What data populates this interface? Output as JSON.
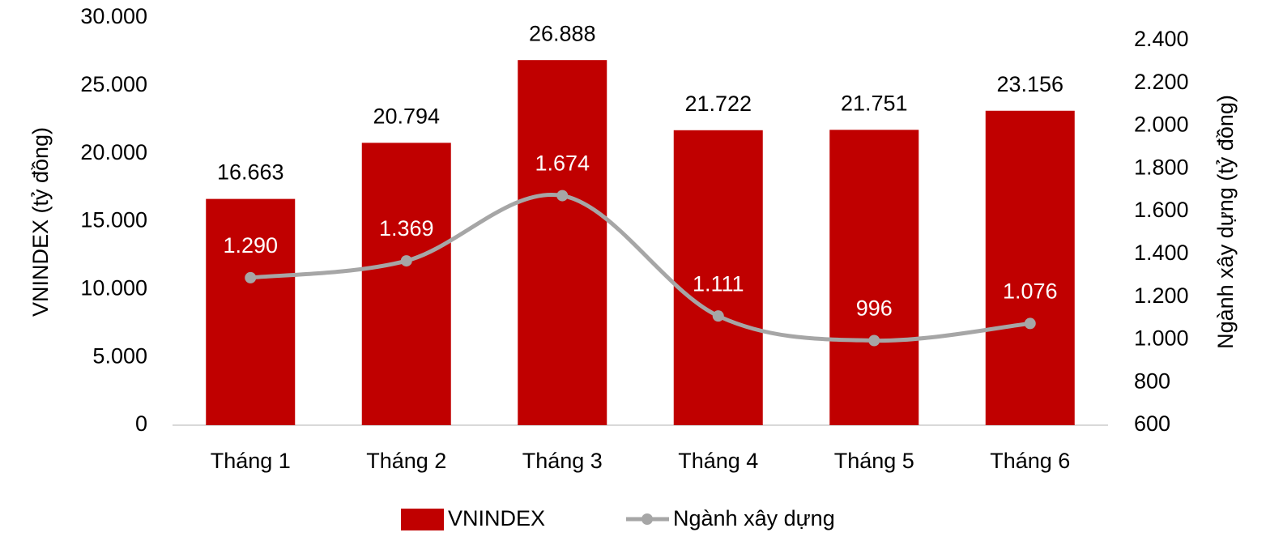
{
  "chart_data": {
    "type": "combo",
    "categories": [
      "Tháng 1",
      "Tháng 2",
      "Tháng 3",
      "Tháng 4",
      "Tháng 5",
      "Tháng 6"
    ],
    "series": [
      {
        "name": "VNINDEX",
        "type": "bar",
        "color": "#c00000",
        "values": [
          16663,
          20794,
          26888,
          21722,
          21751,
          23156
        ],
        "value_labels": [
          "16.663",
          "20.794",
          "26.888",
          "21.722",
          "21.751",
          "23.156"
        ]
      },
      {
        "name": "Ngành xây dựng",
        "type": "line",
        "axis": "y2",
        "color": "#a6a6a6",
        "values": [
          1290,
          1369,
          1674,
          1111,
          996,
          1076
        ],
        "value_labels": [
          "1.290",
          "1.369",
          "1.674",
          "1.111",
          "996",
          "1.076"
        ]
      }
    ],
    "y_label": "VNINDEX (tỷ đồng)",
    "y2_label": "Ngành xây dựng (tỷ đồng)",
    "ylim": [
      0,
      30000
    ],
    "yticks": [
      0,
      {
        "value": 5000,
        "label": "5.000"
      },
      {
        "value": 10000,
        "label": "10.000"
      },
      {
        "value": 15000,
        "label": "15.000"
      },
      {
        "value": 20000,
        "label": "20.000"
      },
      {
        "value": 25000,
        "label": "25.000"
      },
      {
        "value": 30000,
        "label": "30.000"
      }
    ],
    "y2lim": [
      600,
      2400
    ],
    "y2ticks": [
      600,
      800,
      {
        "value": 1000,
        "label": "1.000"
      },
      {
        "value": 1200,
        "label": "1.200"
      },
      {
        "value": 1400,
        "label": "1.400"
      },
      {
        "value": 1600,
        "label": "1.600"
      },
      {
        "value": 1800,
        "label": "1.800"
      },
      {
        "value": 2000,
        "label": "2.000"
      },
      {
        "value": 2200,
        "label": "2.200"
      },
      {
        "value": 2400,
        "label": "2.400"
      }
    ],
    "grid": false,
    "legend": "bottom"
  }
}
